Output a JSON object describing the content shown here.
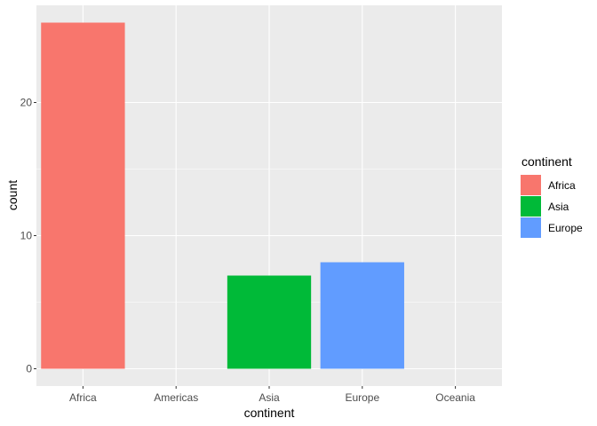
{
  "chart_data": {
    "type": "bar",
    "categories": [
      "Africa",
      "Americas",
      "Asia",
      "Europe",
      "Oceania"
    ],
    "values": [
      26,
      0,
      7,
      8,
      0
    ],
    "bar_colors": {
      "Africa": "#F8766D",
      "Asia": "#00BA38",
      "Europe": "#619CFF"
    },
    "xlabel": "continent",
    "ylabel": "count",
    "ylim": [
      -1.3,
      27.3
    ],
    "yticks": [
      0,
      10,
      20
    ],
    "panel_background": "#EBEBEB",
    "grid": true,
    "legend": {
      "title": "continent",
      "position": "right",
      "entries": [
        {
          "label": "Africa",
          "color": "#F8766D"
        },
        {
          "label": "Asia",
          "color": "#00BA38"
        },
        {
          "label": "Europe",
          "color": "#619CFF"
        }
      ]
    }
  }
}
